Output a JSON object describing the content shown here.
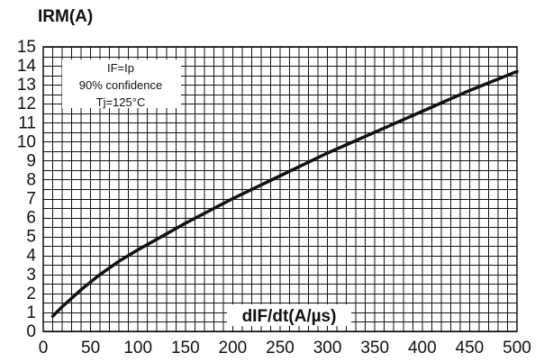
{
  "chart_data": {
    "type": "line",
    "title": "",
    "xlabel": "dIF/dt(A/µs)",
    "ylabel": "IRM(A)",
    "xlim": [
      0,
      500
    ],
    "ylim": [
      0,
      15
    ],
    "x_ticks": [
      "0",
      "50",
      "100",
      "150",
      "200",
      "250",
      "300",
      "350",
      "400",
      "450",
      "500"
    ],
    "y_ticks": [
      "0",
      "1",
      "2",
      "3",
      "4",
      "5",
      "6",
      "7",
      "8",
      "9",
      "10",
      "11",
      "12",
      "13",
      "14",
      "15"
    ],
    "x_minor_step": 10,
    "y_minor_step": 0.5,
    "grid": true,
    "annotation": [
      "IF=Ip",
      "90% confidence",
      "Tj=125°C"
    ],
    "series": [
      {
        "color": "#111111",
        "x": [
          10,
          20,
          40,
          60,
          80,
          100,
          150,
          200,
          250,
          300,
          350,
          400,
          450,
          500
        ],
        "y": [
          0.8,
          1.3,
          2.2,
          3.0,
          3.7,
          4.3,
          5.7,
          7.0,
          8.2,
          9.4,
          10.5,
          11.6,
          12.7,
          13.7
        ]
      }
    ]
  }
}
